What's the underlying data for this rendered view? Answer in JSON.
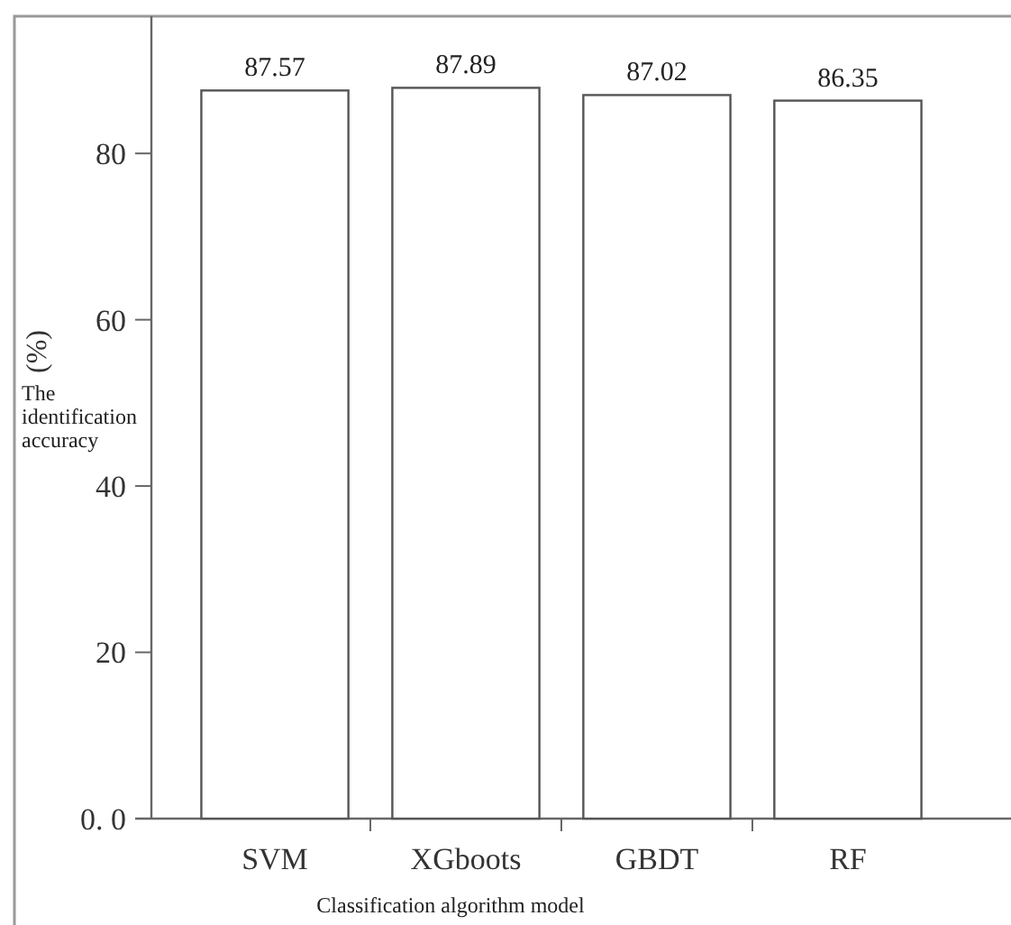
{
  "chart_data": {
    "type": "bar",
    "xlabel": "Classification algorithm model",
    "ylabel": "(%) The identification accuracy",
    "categories": [
      "SVM",
      "XGboots",
      "GBDT",
      "RF"
    ],
    "values": [
      87.57,
      87.89,
      87.02,
      86.35
    ],
    "color": "#ffffff",
    "ylim": [
      0,
      96.5
    ],
    "yticks": [
      {
        "value": 0,
        "label": "0. 0"
      },
      20,
      40,
      60,
      80
    ],
    "data_labels": true
  }
}
